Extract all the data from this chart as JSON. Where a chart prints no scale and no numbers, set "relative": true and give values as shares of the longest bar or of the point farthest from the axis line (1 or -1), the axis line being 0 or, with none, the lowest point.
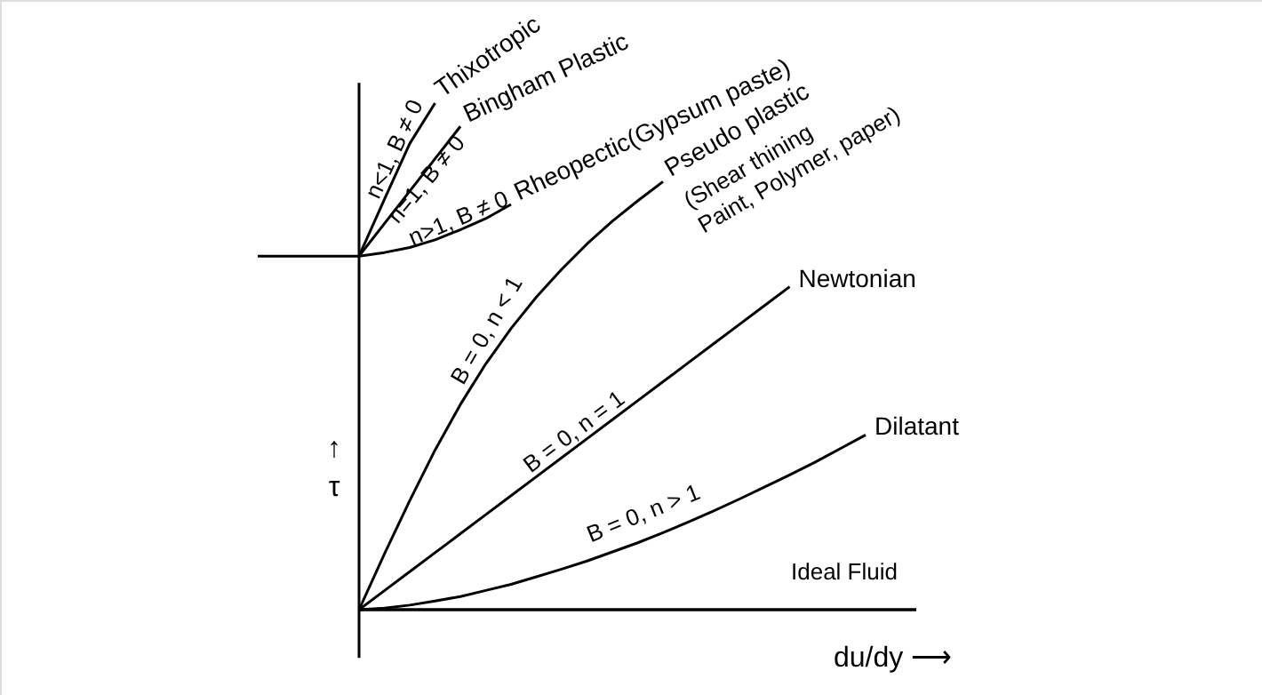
{
  "chart_data": {
    "type": "line",
    "relative": true,
    "xlabel": "du/dy ⟶",
    "ylabel": "↑\nτ",
    "grid": false,
    "marker": "none",
    "line_style": "solid",
    "categories": [
      null,
      null,
      null,
      null,
      null,
      null,
      null,
      null,
      null,
      null,
      null,
      null,
      null,
      null,
      null,
      null,
      null,
      null,
      null,
      null,
      null,
      null,
      null,
      null,
      null,
      null,
      null
    ],
    "series": [
      {
        "name": "Thixotropic",
        "color": "#000000",
        "values": [
          null,
          null,
          null,
          null,
          0.698,
          0.81,
          0.92,
          1.0,
          null,
          null,
          null,
          null,
          null,
          null,
          null,
          null,
          null,
          null,
          null,
          null,
          null,
          null,
          null,
          null,
          null,
          null,
          null
        ]
      },
      {
        "name": "Bingham Plastic",
        "color": "#000000",
        "values": [
          null,
          null,
          null,
          null,
          0.698,
          0.762,
          0.826,
          0.89,
          0.954,
          null,
          null,
          null,
          null,
          null,
          null,
          null,
          null,
          null,
          null,
          null,
          null,
          null,
          null,
          null,
          null,
          null,
          null
        ]
      },
      {
        "name": "Rheopectic(Gypsum paste)",
        "color": "#000000",
        "values": [
          0.698,
          0.698,
          0.698,
          0.698,
          0.698,
          0.705,
          0.715,
          0.73,
          0.75,
          0.772,
          0.8,
          null,
          null,
          null,
          null,
          null,
          null,
          null,
          null,
          null,
          null,
          null,
          null,
          null,
          null,
          null,
          null
        ]
      },
      {
        "name": "Pseudo plastic",
        "color": "#000000",
        "values": [
          null,
          null,
          null,
          null,
          0,
          0.11,
          0.215,
          0.315,
          0.405,
          0.485,
          0.555,
          0.617,
          0.672,
          0.722,
          0.767,
          0.807,
          0.845,
          null,
          null,
          null,
          null,
          null,
          null,
          null,
          null,
          null,
          null
        ]
      },
      {
        "name": "Newtonian",
        "color": "#000000",
        "values": [
          null,
          null,
          null,
          null,
          0,
          0.0375,
          0.075,
          0.1125,
          0.15,
          0.1875,
          0.225,
          0.2625,
          0.3,
          0.3375,
          0.375,
          0.4125,
          0.45,
          0.4875,
          0.525,
          0.5625,
          0.6,
          0.6375,
          null,
          null,
          null,
          null,
          null
        ]
      },
      {
        "name": "Dilatant",
        "color": "#000000",
        "values": [
          null,
          null,
          null,
          null,
          0,
          0.003,
          0.009,
          0.017,
          0.026,
          0.038,
          0.05,
          0.065,
          0.08,
          0.096,
          0.114,
          0.132,
          0.152,
          0.173,
          0.195,
          0.218,
          0.242,
          0.266,
          0.291,
          0.318,
          0.345,
          null,
          null
        ]
      },
      {
        "color": "#000000",
        "values": [
          null,
          null,
          null,
          null,
          0,
          0,
          0,
          0,
          0,
          0,
          0,
          0,
          0,
          0,
          0,
          0,
          0,
          0,
          0,
          0,
          0,
          0,
          0,
          0,
          0,
          0,
          0
        ]
      }
    ],
    "annotations": [
      "n<1, B ≠ 0",
      "n=1, B ≠ 0",
      "n>1, B ≠ 0",
      "B = 0, n < 1",
      "B = 0, n = 1",
      "B = 0, n > 1",
      "(Shear thining\nPaint, Polymer, paper)",
      "Ideal Fluid"
    ]
  }
}
